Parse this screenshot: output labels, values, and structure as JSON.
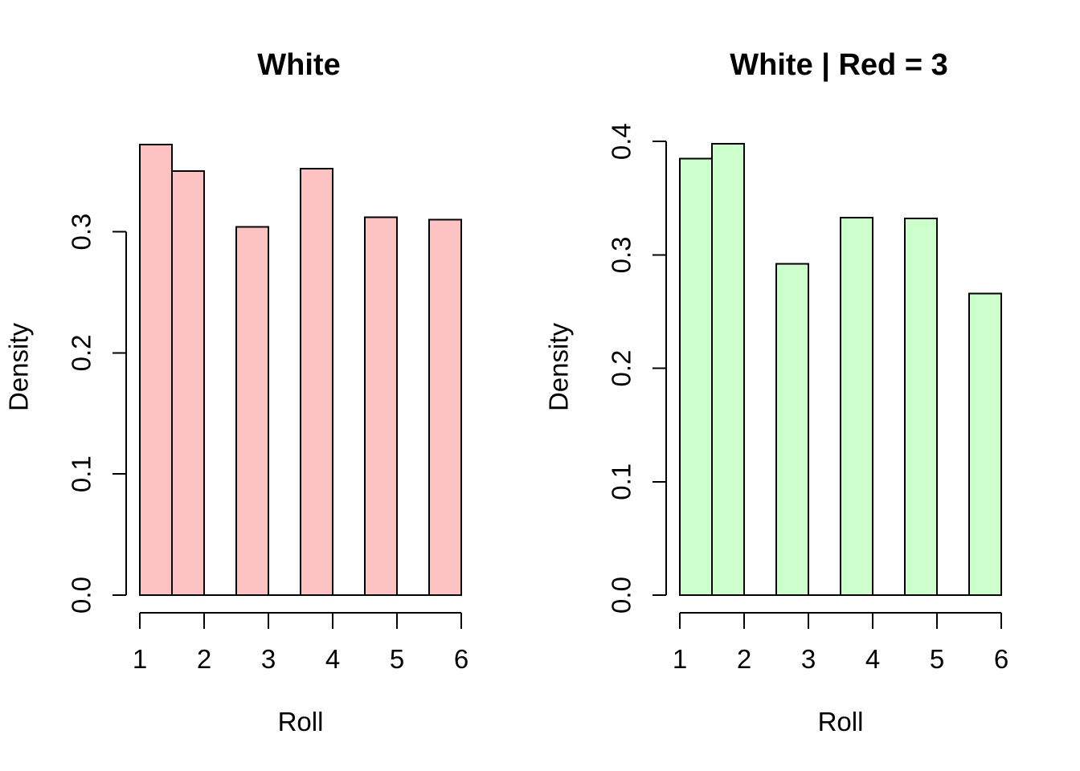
{
  "figure": {
    "background": "#FFFFFF",
    "text_color": "#000000"
  },
  "chart_data": [
    {
      "type": "bar",
      "subtype": "histogram",
      "title": "White",
      "xlabel": "Roll",
      "ylabel": "Density",
      "bar_fill": "#FFC2C2",
      "bar_stroke": "#000000",
      "categories": [
        "[1.0,1.5]",
        "(1.5,2.0]",
        "(2.5,3.0]",
        "(3.5,4.0]",
        "(4.5,5.0]",
        "(5.5,6.0]"
      ],
      "values": [
        0.372,
        0.35,
        0.304,
        0.352,
        0.312,
        0.31
      ],
      "bins": [
        {
          "from": 1.0,
          "to": 1.5,
          "density": 0.372
        },
        {
          "from": 1.5,
          "to": 2.0,
          "density": 0.35
        },
        {
          "from": 2.5,
          "to": 3.0,
          "density": 0.304
        },
        {
          "from": 3.5,
          "to": 4.0,
          "density": 0.352
        },
        {
          "from": 4.5,
          "to": 5.0,
          "density": 0.312
        },
        {
          "from": 5.5,
          "to": 6.0,
          "density": 0.31
        }
      ],
      "x_ticks": [
        "1",
        "2",
        "3",
        "4",
        "5",
        "6"
      ],
      "y_ticks": [
        "0.0",
        "0.1",
        "0.2",
        "0.3"
      ],
      "xlim": [
        1,
        6
      ],
      "ylim": [
        0,
        0.3
      ],
      "grid": false,
      "legend": null
    },
    {
      "type": "bar",
      "subtype": "histogram",
      "title": "White | Red = 3",
      "xlabel": "Roll",
      "ylabel": "Density",
      "bar_fill": "#CCFFCC",
      "bar_stroke": "#000000",
      "categories": [
        "[1.0,1.5]",
        "(1.5,2.0]",
        "(2.5,3.0]",
        "(3.5,4.0]",
        "(4.5,5.0]",
        "(5.5,6.0]"
      ],
      "values": [
        0.385,
        0.398,
        0.292,
        0.333,
        0.332,
        0.266
      ],
      "bins": [
        {
          "from": 1.0,
          "to": 1.5,
          "density": 0.385
        },
        {
          "from": 1.5,
          "to": 2.0,
          "density": 0.398
        },
        {
          "from": 2.5,
          "to": 3.0,
          "density": 0.292
        },
        {
          "from": 3.5,
          "to": 4.0,
          "density": 0.333
        },
        {
          "from": 4.5,
          "to": 5.0,
          "density": 0.332
        },
        {
          "from": 5.5,
          "to": 6.0,
          "density": 0.266
        }
      ],
      "x_ticks": [
        "1",
        "2",
        "3",
        "4",
        "5",
        "6"
      ],
      "y_ticks": [
        "0.0",
        "0.1",
        "0.2",
        "0.3",
        "0.4"
      ],
      "xlim": [
        1,
        6
      ],
      "ylim": [
        0,
        0.4
      ],
      "grid": false,
      "legend": null
    }
  ]
}
